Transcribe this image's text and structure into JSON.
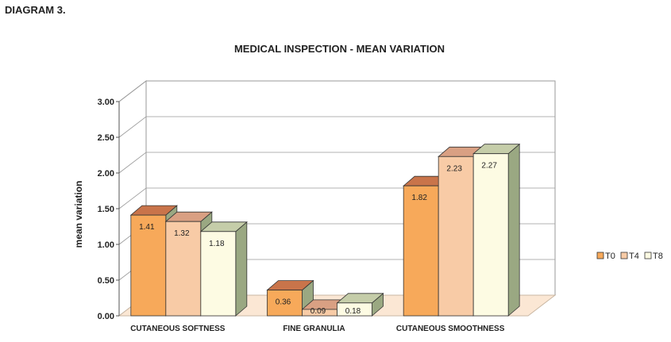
{
  "header": {
    "diagram_label": "DIAGRAM 3."
  },
  "chart_data": {
    "type": "bar",
    "title": "MEDICAL INSPECTION -  MEAN VARIATION",
    "ylabel": "mean variation",
    "xlabel": "",
    "categories": [
      "CUTANEOUS SOFTNESS",
      "FINE GRANULIA",
      "CUTANEOUS SMOOTHNESS"
    ],
    "series": [
      {
        "name": "T0",
        "values": [
          1.41,
          0.36,
          1.82
        ],
        "color": "#f7a95a"
      },
      {
        "name": "T4",
        "values": [
          1.32,
          0.09,
          2.23
        ],
        "color": "#f8cba6"
      },
      {
        "name": "T8",
        "values": [
          1.18,
          0.18,
          2.27
        ],
        "color": "#fdfbe3"
      }
    ],
    "value_labels": [
      [
        "1.41",
        "0.36",
        "1.82"
      ],
      [
        "1.32",
        "0.09",
        "2.23"
      ],
      [
        "1.18",
        "0.18",
        "2.27"
      ]
    ],
    "ylim": [
      0,
      3
    ],
    "yticks": [
      "0.00",
      "0.50",
      "1.00",
      "1.50",
      "2.00",
      "2.50",
      "3.00"
    ],
    "grid": true,
    "three_d": true,
    "legend_position": "right",
    "colors": {
      "side_face": "#9aa882",
      "floor": "#fbe7d4",
      "grid": "#9a9a9a"
    }
  }
}
